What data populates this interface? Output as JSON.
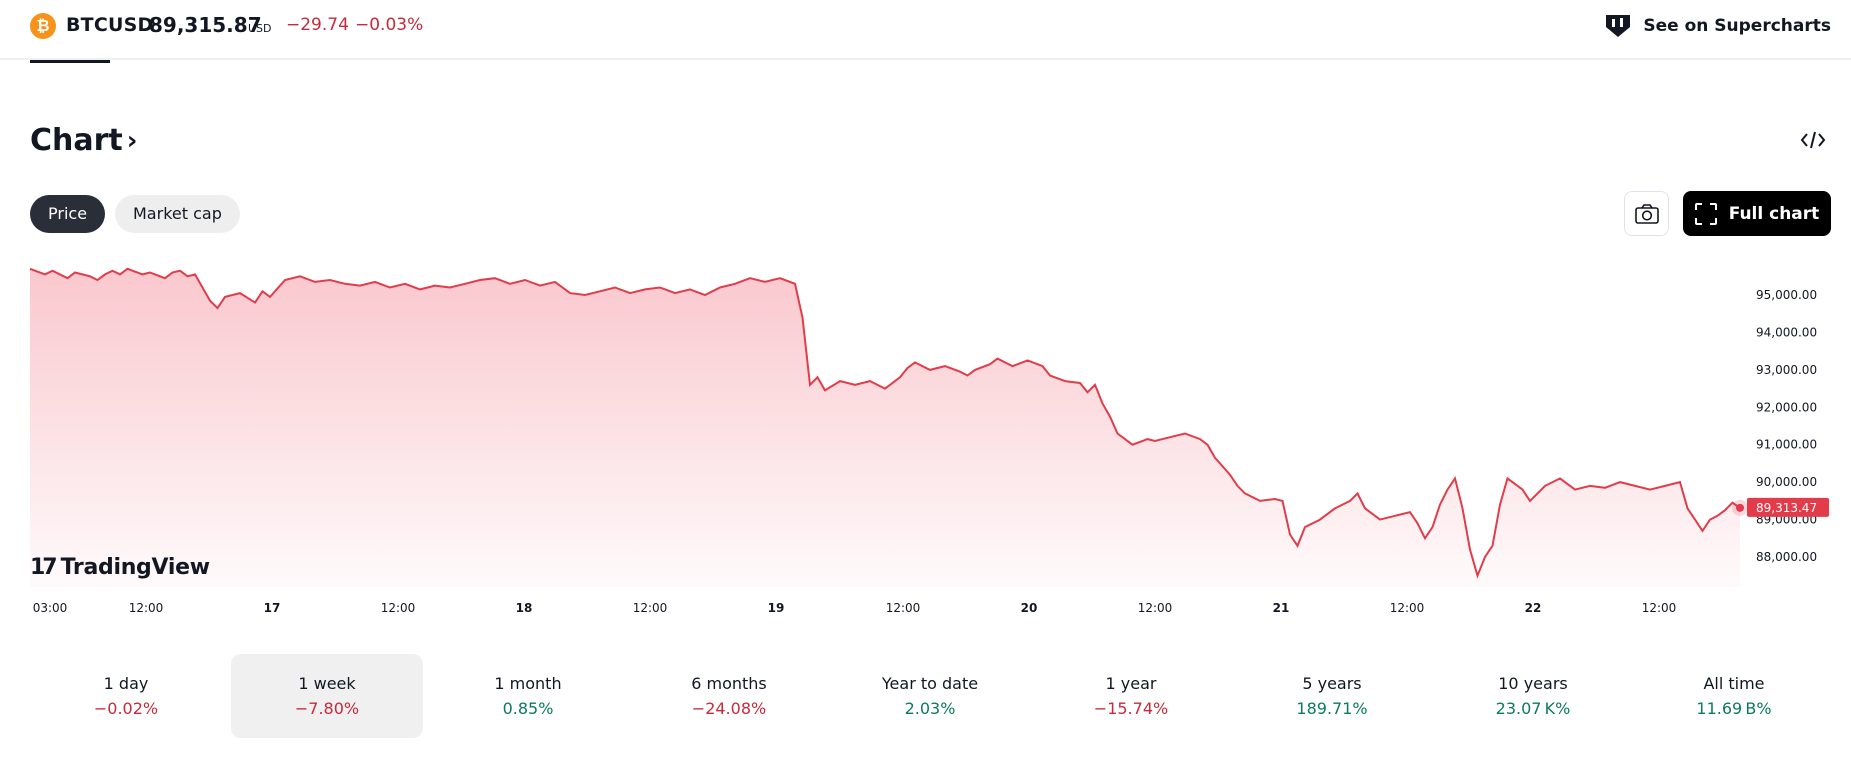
{
  "header": {
    "symbol": "BTCUSD",
    "price": "89,315.87",
    "currency": "USD",
    "change_abs": "−29.74",
    "change_pct": "−0.03%",
    "supercharts_label": "See on Supercharts"
  },
  "section": {
    "title": "Chart",
    "tabs": [
      {
        "label": "Price",
        "active": true
      },
      {
        "label": "Market cap",
        "active": false
      }
    ],
    "full_chart_label": "Full chart"
  },
  "colors": {
    "line": "#e23c4a",
    "fill_top": "#f9c5cb",
    "negative": "#c62a3b",
    "positive": "#0b7a60",
    "last_price_badge": "#e23c4a"
  },
  "chart_data": {
    "type": "area",
    "y_tick_labels": [
      "95,000.00",
      "94,000.00",
      "93,000.00",
      "92,000.00",
      "91,000.00",
      "90,000.00",
      "89,000.00",
      "88,000.00"
    ],
    "y_ticks": [
      95000,
      94000,
      93000,
      92000,
      91000,
      90000,
      89000,
      88000
    ],
    "ylim": [
      87200,
      95800
    ],
    "x_tick_labels": [
      {
        "label": "03:00",
        "bold": false
      },
      {
        "label": "12:00",
        "bold": false
      },
      {
        "label": "17",
        "bold": true
      },
      {
        "label": "12:00",
        "bold": false
      },
      {
        "label": "18",
        "bold": true
      },
      {
        "label": "12:00",
        "bold": false
      },
      {
        "label": "19",
        "bold": true
      },
      {
        "label": "12:00",
        "bold": false
      },
      {
        "label": "20",
        "bold": true
      },
      {
        "label": "12:00",
        "bold": false
      },
      {
        "label": "21",
        "bold": true
      },
      {
        "label": "12:00",
        "bold": false
      },
      {
        "label": "22",
        "bold": true
      },
      {
        "label": "12:00",
        "bold": false
      }
    ],
    "x_start": "16 03:00",
    "x_end": "22 21:00",
    "last_price_label": "89,313.47",
    "points": [
      [
        0,
        95700
      ],
      [
        2,
        95550
      ],
      [
        3,
        95650
      ],
      [
        5,
        95450
      ],
      [
        6,
        95600
      ],
      [
        8,
        95500
      ],
      [
        9,
        95400
      ],
      [
        10,
        95550
      ],
      [
        11,
        95650
      ],
      [
        12,
        95550
      ],
      [
        13,
        95700
      ],
      [
        15,
        95550
      ],
      [
        16,
        95600
      ],
      [
        18,
        95450
      ],
      [
        19,
        95600
      ],
      [
        20,
        95650
      ],
      [
        21,
        95500
      ],
      [
        22,
        95550
      ],
      [
        24,
        94850
      ],
      [
        25,
        94650
      ],
      [
        26,
        94950
      ],
      [
        28,
        95050
      ],
      [
        30,
        94800
      ],
      [
        31,
        95100
      ],
      [
        32,
        94950
      ],
      [
        34,
        95400
      ],
      [
        36,
        95500
      ],
      [
        38,
        95350
      ],
      [
        40,
        95400
      ],
      [
        42,
        95300
      ],
      [
        44,
        95250
      ],
      [
        46,
        95350
      ],
      [
        48,
        95200
      ],
      [
        50,
        95300
      ],
      [
        52,
        95150
      ],
      [
        54,
        95250
      ],
      [
        56,
        95200
      ],
      [
        58,
        95300
      ],
      [
        60,
        95400
      ],
      [
        62,
        95450
      ],
      [
        64,
        95300
      ],
      [
        66,
        95400
      ],
      [
        68,
        95250
      ],
      [
        70,
        95350
      ],
      [
        72,
        95050
      ],
      [
        74,
        95000
      ],
      [
        76,
        95100
      ],
      [
        78,
        95200
      ],
      [
        80,
        95050
      ],
      [
        82,
        95150
      ],
      [
        84,
        95200
      ],
      [
        86,
        95050
      ],
      [
        88,
        95150
      ],
      [
        90,
        95000
      ],
      [
        92,
        95200
      ],
      [
        94,
        95300
      ],
      [
        96,
        95450
      ],
      [
        98,
        95350
      ],
      [
        100,
        95450
      ],
      [
        102,
        95300
      ],
      [
        103,
        94400
      ],
      [
        104,
        92600
      ],
      [
        105,
        92800
      ],
      [
        106,
        92450
      ],
      [
        108,
        92700
      ],
      [
        110,
        92600
      ],
      [
        112,
        92700
      ],
      [
        114,
        92500
      ],
      [
        116,
        92800
      ],
      [
        117,
        93050
      ],
      [
        118,
        93200
      ],
      [
        120,
        93000
      ],
      [
        122,
        93100
      ],
      [
        124,
        92950
      ],
      [
        125,
        92850
      ],
      [
        126,
        93000
      ],
      [
        128,
        93150
      ],
      [
        129,
        93300
      ],
      [
        131,
        93100
      ],
      [
        133,
        93250
      ],
      [
        135,
        93100
      ],
      [
        136,
        92850
      ],
      [
        138,
        92700
      ],
      [
        140,
        92650
      ],
      [
        141,
        92400
      ],
      [
        142,
        92600
      ],
      [
        143,
        92100
      ],
      [
        144,
        91750
      ],
      [
        145,
        91300
      ],
      [
        147,
        91000
      ],
      [
        149,
        91150
      ],
      [
        150,
        91100
      ],
      [
        152,
        91200
      ],
      [
        154,
        91300
      ],
      [
        156,
        91150
      ],
      [
        157,
        91000
      ],
      [
        158,
        90650
      ],
      [
        160,
        90200
      ],
      [
        161,
        89900
      ],
      [
        162,
        89700
      ],
      [
        164,
        89500
      ],
      [
        166,
        89550
      ],
      [
        167,
        89500
      ],
      [
        168,
        88600
      ],
      [
        169,
        88300
      ],
      [
        170,
        88800
      ],
      [
        172,
        89000
      ],
      [
        174,
        89300
      ],
      [
        176,
        89500
      ],
      [
        177,
        89700
      ],
      [
        178,
        89300
      ],
      [
        180,
        89000
      ],
      [
        182,
        89100
      ],
      [
        184,
        89200
      ],
      [
        185,
        88900
      ],
      [
        186,
        88500
      ],
      [
        187,
        88800
      ],
      [
        188,
        89400
      ],
      [
        189,
        89800
      ],
      [
        190,
        90100
      ],
      [
        191,
        89300
      ],
      [
        192,
        88200
      ],
      [
        193,
        87500
      ],
      [
        194,
        88000
      ],
      [
        195,
        88300
      ],
      [
        196,
        89400
      ],
      [
        197,
        90100
      ],
      [
        199,
        89800
      ],
      [
        200,
        89500
      ],
      [
        202,
        89900
      ],
      [
        204,
        90100
      ],
      [
        206,
        89800
      ],
      [
        208,
        89900
      ],
      [
        210,
        89850
      ],
      [
        212,
        90000
      ],
      [
        214,
        89900
      ],
      [
        216,
        89800
      ],
      [
        218,
        89900
      ],
      [
        220,
        90000
      ],
      [
        221,
        89300
      ],
      [
        222,
        89000
      ],
      [
        223,
        88700
      ],
      [
        224,
        89000
      ],
      [
        225,
        89100
      ],
      [
        226,
        89250
      ],
      [
        227,
        89450
      ],
      [
        228,
        89313
      ]
    ]
  },
  "periods": [
    {
      "label": "1 day",
      "value": "−0.02%",
      "sign": "neg",
      "active": false
    },
    {
      "label": "1 week",
      "value": "−7.80%",
      "sign": "neg",
      "active": true
    },
    {
      "label": "1 month",
      "value": "0.85%",
      "sign": "pos",
      "active": false
    },
    {
      "label": "6 months",
      "value": "−24.08%",
      "sign": "neg",
      "active": false
    },
    {
      "label": "Year to date",
      "value": "2.03%",
      "sign": "pos",
      "active": false
    },
    {
      "label": "1 year",
      "value": "−15.74%",
      "sign": "neg",
      "active": false
    },
    {
      "label": "5 years",
      "value": "189.71%",
      "sign": "pos",
      "active": false
    },
    {
      "label": "10 years",
      "value": "23.07 K%",
      "sign": "pos",
      "active": false
    },
    {
      "label": "All time",
      "value": "11.69 B%",
      "sign": "pos",
      "active": false
    }
  ]
}
